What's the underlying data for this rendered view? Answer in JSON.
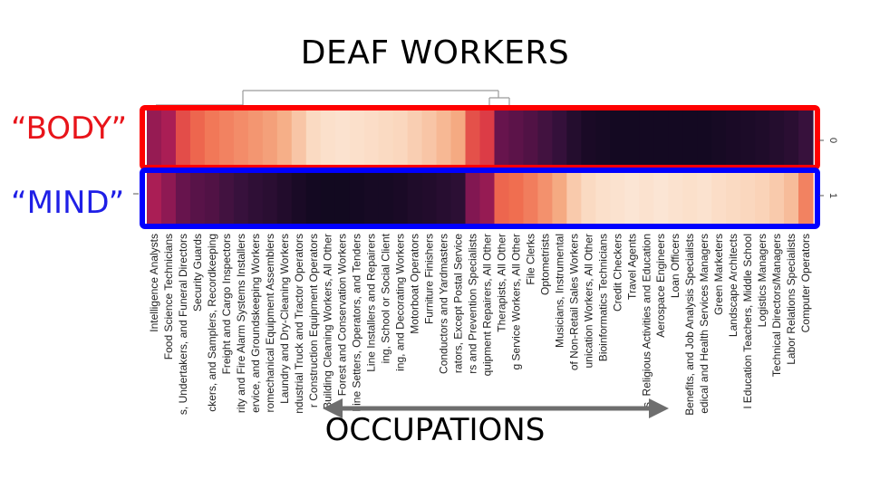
{
  "title": "DEAF WORKERS",
  "row_labels": {
    "body": "“BODY”",
    "mind": "“MIND”"
  },
  "annotation": "OCCUPATIONS",
  "colors": {
    "body_box": "#ff0000",
    "mind_box": "#0000ff",
    "arrow": "#6e6e6e"
  },
  "chart_data": {
    "type": "heatmap",
    "rows": [
      "0",
      "1"
    ],
    "columns": [
      "Intelligence Analysts",
      "Food Science Technicians",
      "s, Undertakers, and Funeral Directors",
      "Security Guards",
      "ckers, and Samplers, Recordkeeping",
      "Freight and Cargo Inspectors",
      "rity and Fire Alarm Systems Installers",
      "ervice, and Groundskeeping Workers",
      "romechanical Equipment Assemblers",
      "Laundry and Dry-Cleaning Workers",
      "ndustrial Truck and Tractor Operators",
      "r Construction Equipment Operators",
      "Building Cleaning Workers, All Other",
      "Forest and Conservation Workers",
      "hine Setters, Operators, and Tenders",
      "Line Installers and Repairers",
      "ing, School or Social Client",
      "ing, and Decorating Workers",
      "Motorboat Operators",
      "Furniture Finishers",
      "Conductors and Yardmasters",
      "rators, Except Postal Service",
      "rs and Prevention Specialists",
      "quipment Repairers, All Other",
      "Therapists, All Other",
      "g Service Workers, All Other",
      "File Clerks",
      "Optometrists",
      "Musicians, Instrumental",
      "of Non-Retail Sales Workers",
      "unication Workers, All Other",
      "Bioinformatics Technicians",
      "Credit Checkers",
      "Travel Agents",
      "rs, Religious Activities and Education",
      "Aerospace Engineers",
      "Loan Officers",
      "Benefits, and Job Analysis Specialists",
      "edical and Health Services Managers",
      "Green Marketers",
      "Landscape Architects",
      "l Education Teachers, Middle School",
      "Logistics Managers",
      "Technical Directors/Managers",
      "Labor Relations Specialists",
      "Computer Operators"
    ],
    "values_row0": [
      0.4,
      0.45,
      0.62,
      0.68,
      0.72,
      0.74,
      0.76,
      0.78,
      0.8,
      0.83,
      0.88,
      0.93,
      0.95,
      0.96,
      0.95,
      0.94,
      0.93,
      0.92,
      0.9,
      0.88,
      0.85,
      0.82,
      0.63,
      0.58,
      0.28,
      0.25,
      0.22,
      0.18,
      0.14,
      0.08,
      0.04,
      0.03,
      0.02,
      0.02,
      0.02,
      0.02,
      0.02,
      0.02,
      0.02,
      0.03,
      0.04,
      0.05,
      0.06,
      0.08,
      0.1,
      0.15
    ],
    "values_row1": [
      0.45,
      0.38,
      0.28,
      0.24,
      0.22,
      0.18,
      0.15,
      0.12,
      0.1,
      0.07,
      0.04,
      0.02,
      0.01,
      0.01,
      0.02,
      0.03,
      0.03,
      0.04,
      0.06,
      0.07,
      0.09,
      0.11,
      0.35,
      0.4,
      0.68,
      0.7,
      0.73,
      0.77,
      0.82,
      0.89,
      0.93,
      0.95,
      0.96,
      0.97,
      0.96,
      0.97,
      0.96,
      0.95,
      0.96,
      0.94,
      0.93,
      0.92,
      0.91,
      0.89,
      0.86,
      0.74
    ]
  }
}
